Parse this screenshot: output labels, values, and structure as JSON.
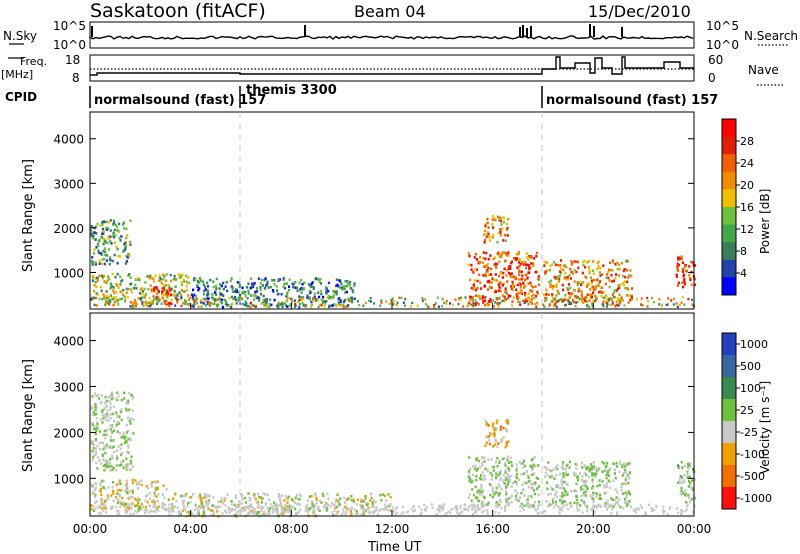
{
  "header": {
    "station": "Saskatoon (fitACF)",
    "beam": "Beam 04",
    "date": "15/Dec/2010"
  },
  "noise_panel": {
    "left_label": "N.Sky",
    "right_label": "N.Search",
    "left_ticks": [
      "10^5",
      "10^0"
    ],
    "right_ticks": [
      "10^5",
      "10^0"
    ]
  },
  "freq_panel": {
    "left_label_1": "Freq.",
    "left_label_2": "[MHz]",
    "right_label": "Nave",
    "left_ticks": [
      "18",
      "8"
    ],
    "right_ticks": [
      "60",
      "0"
    ]
  },
  "cpid": {
    "label": "CPID",
    "segments": [
      {
        "name": "normalsound (fast) 157",
        "start": "00:00"
      },
      {
        "name": "themis 3300",
        "start": "06:00"
      },
      {
        "name": "normalsound (fast) 157",
        "start": "18:00"
      }
    ]
  },
  "colorbars": {
    "power_label": "Power [dB]",
    "power_ticks": [
      "28",
      "24",
      "20",
      "16",
      "12",
      "8",
      "4"
    ],
    "velocity_label": "Velocity [m s⁻¹]",
    "velocity_ticks": [
      "1000",
      "500",
      "100",
      "25",
      "-25",
      "-100",
      "-500",
      "-1000"
    ]
  },
  "chart_data": [
    {
      "type": "heatmap",
      "title": "",
      "xlabel": "",
      "ylabel": "Slant Range [km]",
      "x_ticks": [
        "00:00",
        "04:00",
        "08:00",
        "12:00",
        "16:00",
        "20:00",
        "00:00"
      ],
      "y_ticks": [
        "1000",
        "2000",
        "3000",
        "4000"
      ],
      "xlim": [
        0,
        24
      ],
      "ylim": [
        180,
        4600
      ],
      "colorbar": "Power [dB]",
      "colorbar_range": [
        0,
        30
      ],
      "colors": [
        "#0000ff",
        "#2244a8",
        "#3a7d5a",
        "#44a848",
        "#70c040",
        "#f0c000",
        "#f08c00",
        "#f06000",
        "#e02000",
        "#ff0000"
      ],
      "regions_description_hours_km": [
        {
          "x": [
            0.0,
            1.6
          ],
          "y": [
            1200,
            2200
          ],
          "value": 10
        },
        {
          "x": [
            0.0,
            4.0
          ],
          "y": [
            300,
            1000
          ],
          "value": 14
        },
        {
          "x": [
            2.4,
            3.2
          ],
          "y": [
            300,
            700
          ],
          "value": 28
        },
        {
          "x": [
            4.0,
            10.5
          ],
          "y": [
            250,
            900
          ],
          "value": 8
        },
        {
          "x": [
            15.0,
            17.8
          ],
          "y": [
            300,
            1500
          ],
          "value": 24
        },
        {
          "x": [
            15.6,
            16.6
          ],
          "y": [
            1700,
            2300
          ],
          "value": 20
        },
        {
          "x": [
            18.0,
            21.5
          ],
          "y": [
            350,
            1300
          ],
          "value": 20
        },
        {
          "x": [
            23.2,
            24.0
          ],
          "y": [
            700,
            1400
          ],
          "value": 26
        }
      ]
    },
    {
      "type": "heatmap",
      "title": "",
      "xlabel": "Time UT",
      "ylabel": "Slant Range [km]",
      "x_ticks": [
        "00:00",
        "04:00",
        "08:00",
        "12:00",
        "16:00",
        "20:00",
        "00:00"
      ],
      "y_ticks": [
        "1000",
        "2000",
        "3000",
        "4000"
      ],
      "xlim": [
        0,
        24
      ],
      "ylim": [
        180,
        4600
      ],
      "colorbar": "Velocity [m s-1]",
      "colorbar_range": [
        -1000,
        1000
      ],
      "colors": [
        "#2040c0",
        "#3a66a0",
        "#3a8a50",
        "#70c040",
        "#c8c8c8",
        "#f0a000",
        "#f07000",
        "#ff1010"
      ],
      "regions_description_hours_km": [
        {
          "x": [
            0.0,
            1.7
          ],
          "y": [
            1200,
            2900
          ],
          "value": 0
        },
        {
          "x": [
            0.0,
            3.0
          ],
          "y": [
            300,
            1000
          ],
          "value": -150
        },
        {
          "x": [
            3.0,
            12.0
          ],
          "y": [
            200,
            700
          ],
          "value": -100
        },
        {
          "x": [
            15.0,
            17.8
          ],
          "y": [
            400,
            1500
          ],
          "value": 0
        },
        {
          "x": [
            15.6,
            16.6
          ],
          "y": [
            1700,
            2300
          ],
          "value": -400
        },
        {
          "x": [
            18.0,
            21.5
          ],
          "y": [
            400,
            1400
          ],
          "value": 0
        },
        {
          "x": [
            23.3,
            24.0
          ],
          "y": [
            500,
            1400
          ],
          "value": 50
        }
      ]
    }
  ]
}
